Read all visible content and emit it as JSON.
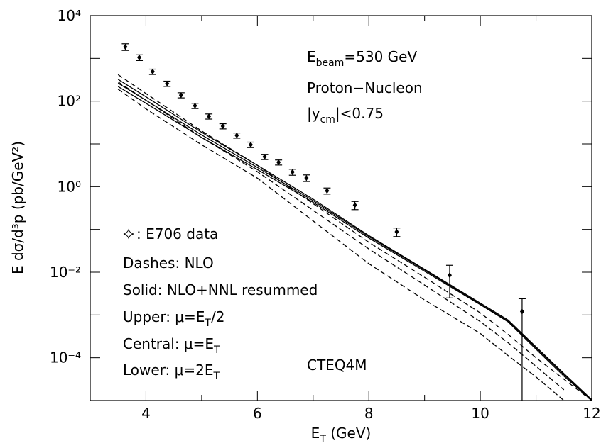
{
  "chart_data": {
    "type": "line",
    "ylabel": "E dσ/d³p (pb/GeV²)",
    "xlabel": [
      {
        "t": "E"
      },
      {
        "t": "T",
        "s": "sub"
      },
      {
        "t": " (GeV)"
      }
    ],
    "xlim": [
      3,
      12
    ],
    "xticks": [
      4,
      6,
      8,
      10,
      12
    ],
    "xminor_ticks": [
      3,
      5,
      7,
      9,
      11
    ],
    "ylim": [
      1e-05,
      10000
    ],
    "log_y": true,
    "yticks": [
      {
        "value": 0.0001,
        "label": "10⁻⁴"
      },
      {
        "value": 0.01,
        "label": "10⁻²"
      },
      {
        "value": 1,
        "label": "10⁰"
      },
      {
        "value": 100,
        "label": "10²"
      },
      {
        "value": 10000,
        "label": "10⁴"
      }
    ],
    "yminor_ticks": [
      1e-05,
      0.001,
      0.1,
      10,
      1000
    ],
    "x": [
      3.5,
      4,
      5,
      6,
      7,
      8,
      9,
      10,
      10.5,
      11,
      11.5,
      12
    ],
    "series": [
      {
        "style": "solid",
        "color": "#000000",
        "values": [
          324,
          126,
          18.6,
          3.16,
          0.51,
          0.072,
          0.0117,
          0.0019,
          0.00076,
          0.00018,
          4.27e-05,
          1.05e-05
        ]
      },
      {
        "style": "solid",
        "color": "#000000",
        "values": [
          263,
          105,
          16.2,
          2.82,
          0.47,
          0.068,
          0.0112,
          0.0018,
          0.00072,
          0.00017,
          4e-05,
          1e-05
        ]
      },
      {
        "style": "solid",
        "color": "#000000",
        "values": [
          219,
          89,
          14.1,
          2.51,
          0.43,
          0.063,
          0.0105,
          0.00174,
          0.00069,
          0.000158,
          3.7e-05,
          1e-05
        ]
      },
      {
        "style": "dashed",
        "color": "#000000",
        "values": [
          417,
          151,
          20,
          3.16,
          0.4,
          0.05,
          0.0076,
          0.00112,
          0.00035,
          0.0001,
          3.16e-05,
          1e-05
        ]
      },
      {
        "style": "dashed",
        "color": "#000000",
        "values": [
          282,
          105,
          14.1,
          2.24,
          0.28,
          0.035,
          0.005,
          0.0007,
          0.000224,
          6.3e-05,
          1.78e-05,
          null
        ]
      },
      {
        "style": "dashed",
        "color": "#000000",
        "values": [
          190,
          66,
          9.5,
          1.58,
          0.158,
          0.0158,
          0.00224,
          0.00037,
          0.000112,
          3.55e-05,
          1e-05,
          null
        ]
      }
    ],
    "data_points": {
      "x": [
        3.63,
        3.88,
        4.12,
        4.38,
        4.63,
        4.88,
        5.13,
        5.38,
        5.63,
        5.88,
        6.13,
        6.38,
        6.63,
        6.88,
        7.25,
        7.75,
        8.5,
        9.45,
        10.75
      ],
      "values": [
        1860,
        1050,
        490,
        257,
        138,
        78,
        44,
        26,
        15.8,
        9.6,
        5.0,
        3.7,
        2.2,
        1.6,
        0.8,
        0.37,
        0.088,
        0.0085,
        0.0012
      ],
      "errors": [
        330,
        160,
        70,
        36,
        19,
        11,
        6,
        3.6,
        2.2,
        1.4,
        0.7,
        0.5,
        0.35,
        0.28,
        0.13,
        0.08,
        0.02,
        0.006,
        0.0012
      ]
    },
    "annotations": [
      [
        {
          "t": "E"
        },
        {
          "t": "beam",
          "s": "sub"
        },
        {
          "t": "=530 GeV"
        }
      ],
      [
        {
          "t": "Proton−Nucleon"
        }
      ],
      [
        {
          "t": "|y"
        },
        {
          "t": "cm",
          "s": "sub"
        },
        {
          "t": "|<0.75"
        }
      ],
      [
        {
          "t": ": E706 data"
        }
      ],
      [
        {
          "t": "Dashes: NLO"
        }
      ],
      [
        {
          "t": "Solid: NLO+NNL resummed"
        }
      ],
      [
        {
          "t": "Upper: μ=E"
        },
        {
          "t": "T",
          "s": "sub"
        },
        {
          "t": "/2"
        }
      ],
      [
        {
          "t": "Central: μ=E"
        },
        {
          "t": "T",
          "s": "sub"
        }
      ],
      [
        {
          "t": "Lower: μ=2E"
        },
        {
          "t": "T",
          "s": "sub"
        }
      ],
      [
        {
          "t": "CTEQ4M"
        }
      ]
    ]
  }
}
